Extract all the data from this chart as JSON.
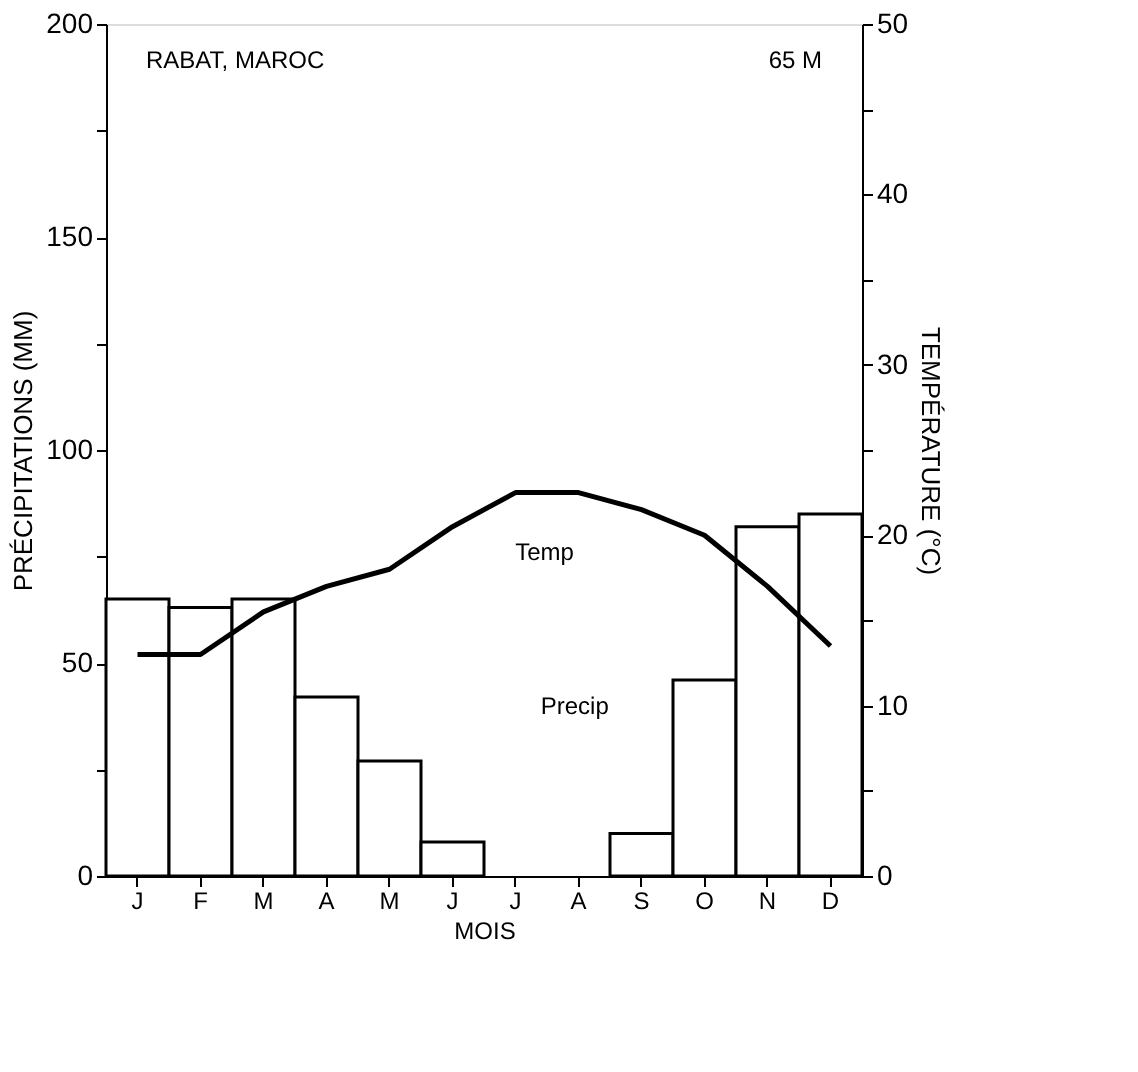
{
  "chart_data": {
    "type": "bar",
    "categories": [
      "J",
      "F",
      "M",
      "A",
      "M",
      "J",
      "J",
      "A",
      "S",
      "O",
      "N",
      "D"
    ],
    "xlabel": "MOIS",
    "ylabel": "PRÉCIPITATIONS (MM)",
    "y2label": "TEMPÉRATURE (°C)",
    "series": [
      {
        "name": "Precip",
        "color": "#ffffff",
        "values": [
          65,
          63,
          65,
          42,
          27,
          8,
          0,
          0,
          10,
          46,
          82,
          85
        ]
      },
      {
        "name": "Temp",
        "type": "line",
        "axis": "y2",
        "color": "#000000",
        "values": [
          13,
          13,
          15.5,
          17,
          18,
          20.5,
          22.5,
          22.5,
          21.5,
          20,
          17,
          13.5
        ]
      }
    ],
    "ylim": [
      0,
      200
    ],
    "yticks": [
      0,
      {
        "value": 25,
        "label": null
      },
      50,
      {
        "value": 75,
        "label": null
      },
      100,
      {
        "value": 125,
        "label": null
      },
      150,
      {
        "value": 175,
        "label": null
      },
      200
    ],
    "y2lim": [
      0,
      50
    ],
    "y2ticks": [
      0,
      {
        "value": 5,
        "label": null
      },
      10,
      {
        "value": 15,
        "label": null
      },
      20,
      {
        "value": 25,
        "label": null
      },
      30,
      {
        "value": 35,
        "label": null
      },
      40,
      {
        "value": 45,
        "label": null
      },
      50
    ],
    "annotations": [
      "RABAT, MAROC",
      "65 M"
    ],
    "grid": false,
    "marker": "none",
    "line_style": "solid"
  }
}
